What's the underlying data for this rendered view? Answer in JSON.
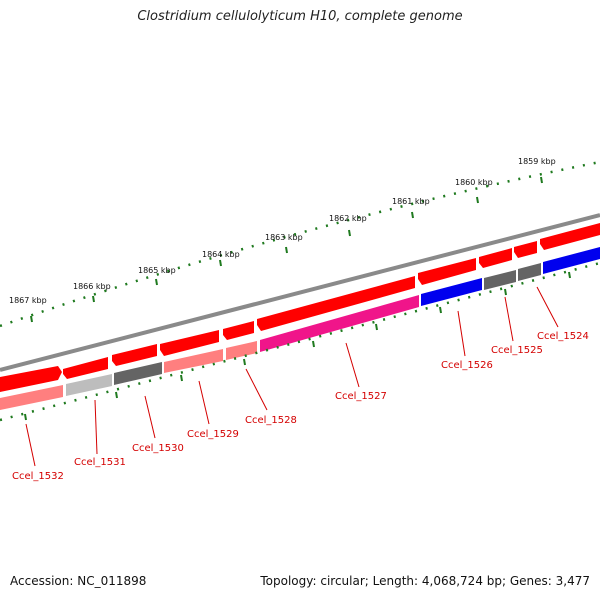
{
  "title": "Clostridium cellulolyticum H10, complete genome",
  "accession_text": "Accession: NC_011898",
  "info_text": "Topology: circular; Length: 4,068,724 bp; Genes: 3,477",
  "kbp_labels": [
    "1867 kbp",
    "1866 kbp",
    "1865 kbp",
    "1864 kbp",
    "1863 kbp",
    "1862 kbp",
    "1861 kbp",
    "1860 kbp",
    "1859 kbp"
  ],
  "gene_labels": [
    "Ccel_1532",
    "Ccel_1531",
    "Ccel_1530",
    "Ccel_1529",
    "Ccel_1528",
    "Ccel_1527",
    "Ccel_1526",
    "Ccel_1525",
    "Ccel_1524"
  ],
  "colors": {
    "forward_red": "#ff0000",
    "label_red": "#d40000",
    "pink": "#ff7f7f",
    "light_gray": "#bdbdbd",
    "dark_gray": "#646464",
    "magenta": "#f0158a",
    "blue": "#0000ee",
    "tick_green": "#1f7a1f",
    "backbone_gray": "#8a8a8a"
  }
}
